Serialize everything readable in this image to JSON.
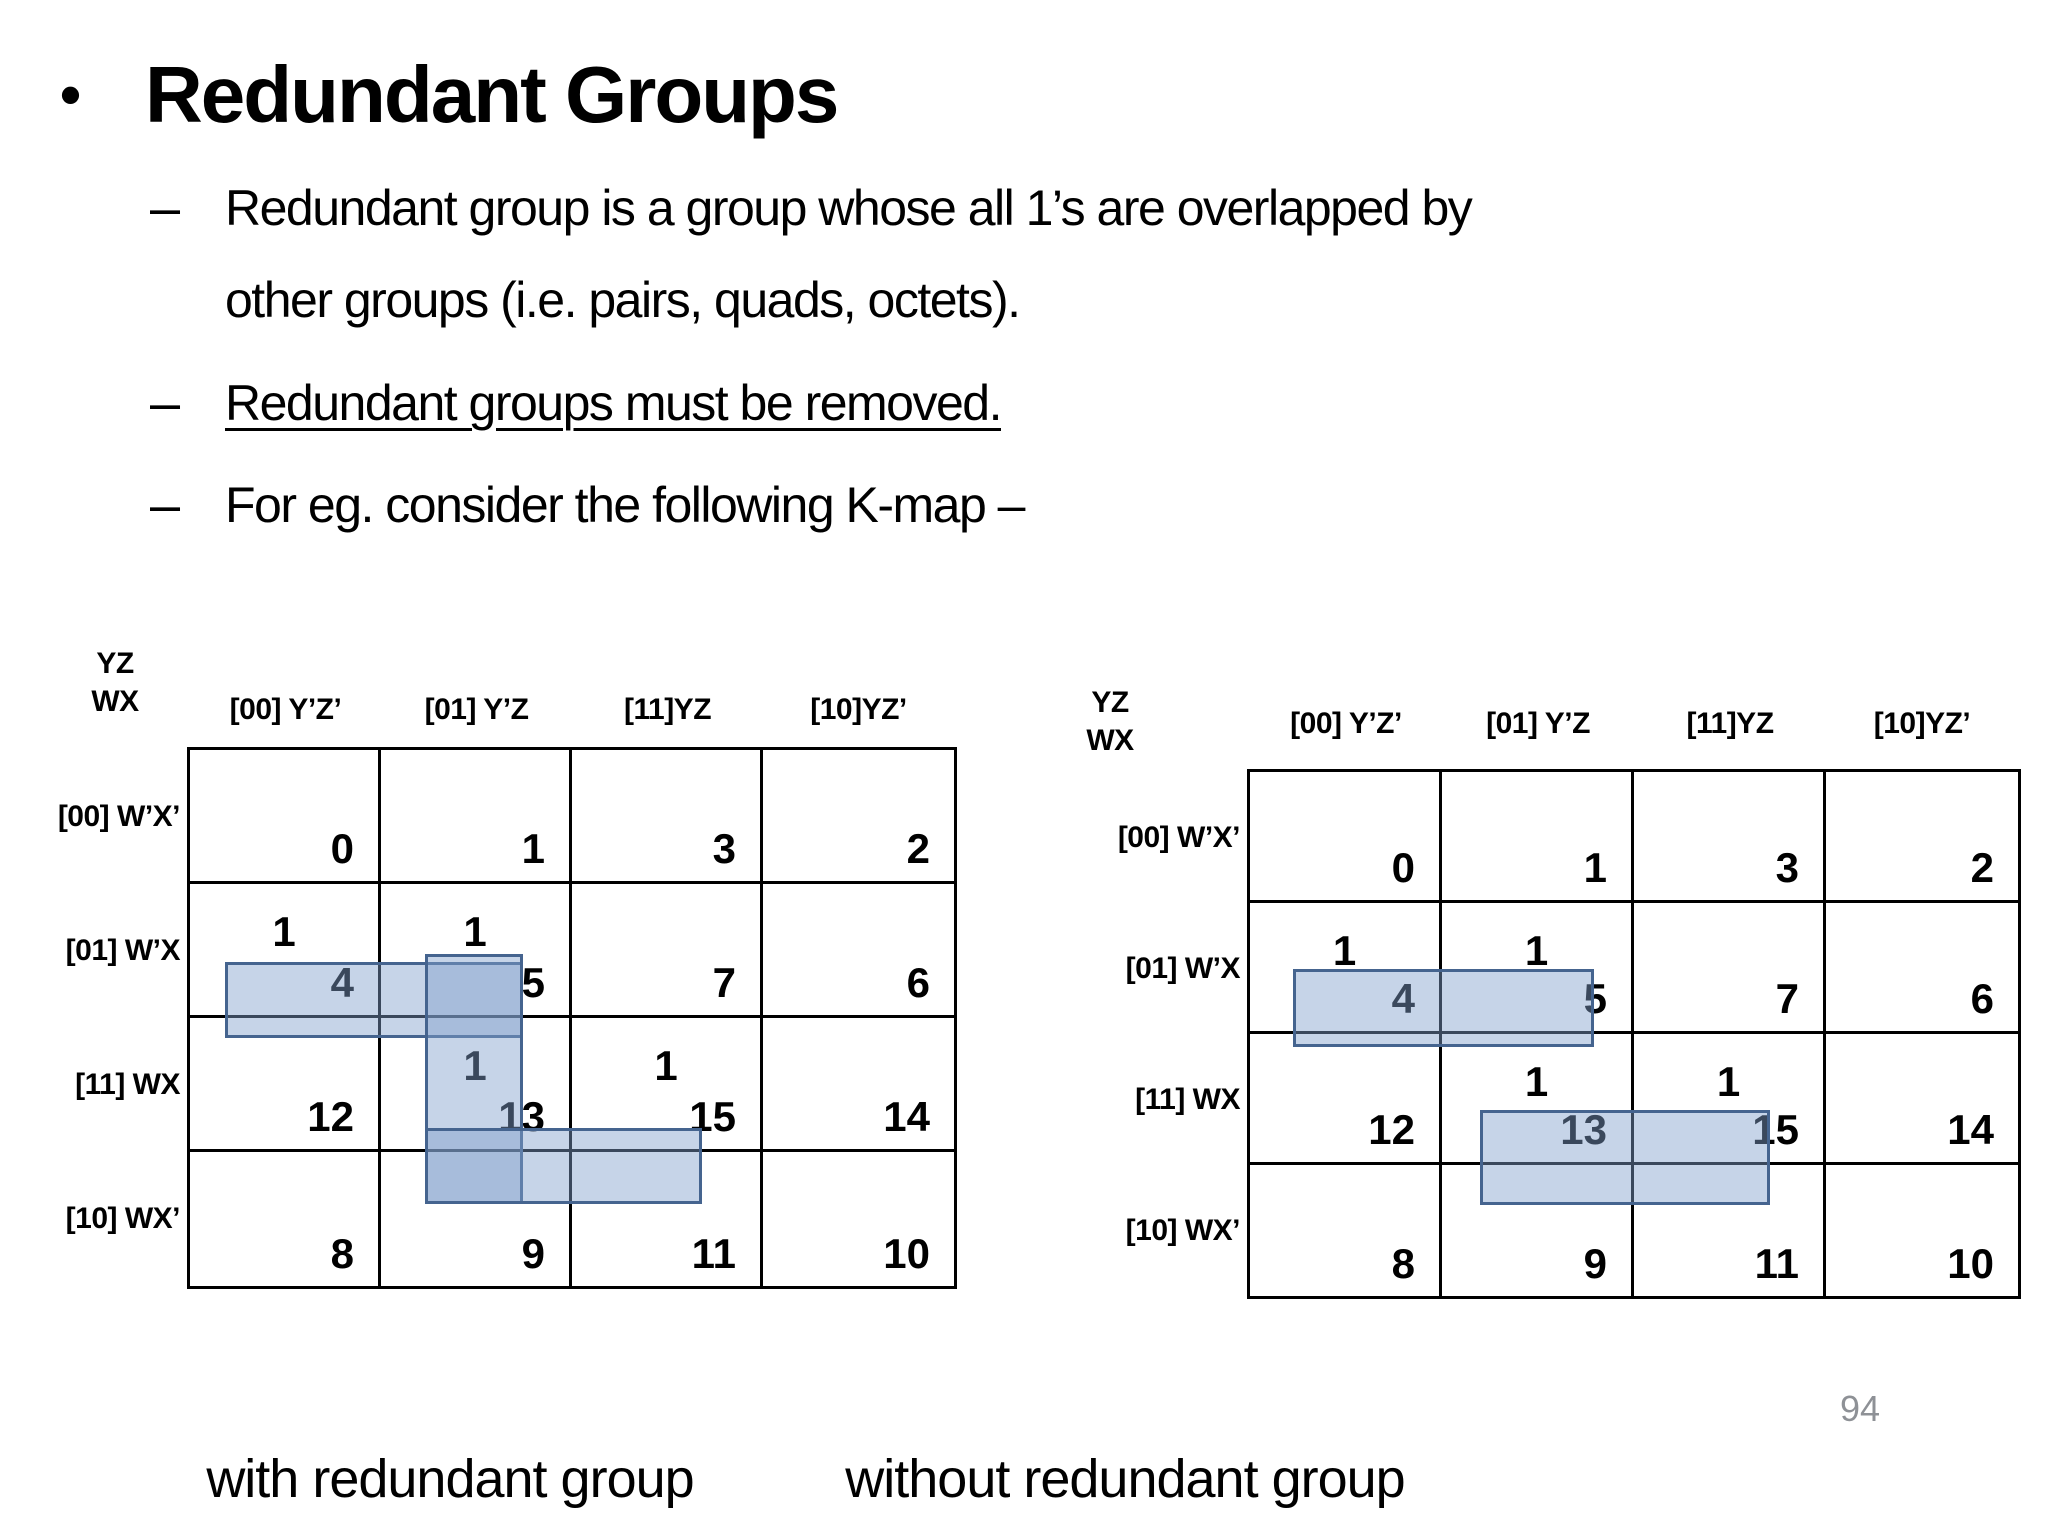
{
  "title": {
    "bullet": "•",
    "text": "Redundant Groups"
  },
  "bullets": [
    {
      "dash": "–",
      "lines": [
        "Redundant group is a group whose all 1’s are overlapped by",
        "other groups (i.e. pairs, quads, octets)."
      ]
    },
    {
      "dash": "–",
      "lines": [
        "Redundant groups must be removed."
      ],
      "underlined": true
    },
    {
      "dash": "–",
      "lines": [
        "For eg. consider the following K-map –"
      ]
    }
  ],
  "kmaps": [
    {
      "caption": "with redundant group",
      "corner": {
        "top": "YZ",
        "bottom": "WX"
      },
      "col_headers": [
        "[00] Y’Z’",
        "[01] Y’Z",
        "[11]YZ",
        "[10]YZ’"
      ],
      "row_headers": [
        "[00] W’X’",
        "[01] W’X",
        "[11] WX",
        "[10] WX’"
      ],
      "cells": [
        {
          "idx": "0",
          "one": ""
        },
        {
          "idx": "1",
          "one": ""
        },
        {
          "idx": "3",
          "one": ""
        },
        {
          "idx": "2",
          "one": ""
        },
        {
          "idx": "4",
          "one": "1"
        },
        {
          "idx": "5",
          "one": "1"
        },
        {
          "idx": "7",
          "one": ""
        },
        {
          "idx": "6",
          "one": ""
        },
        {
          "idx": "12",
          "one": ""
        },
        {
          "idx": "13",
          "one": "1"
        },
        {
          "idx": "15",
          "one": "1"
        },
        {
          "idx": "14",
          "one": ""
        },
        {
          "idx": "8",
          "one": ""
        },
        {
          "idx": "9",
          "one": ""
        },
        {
          "idx": "11",
          "one": ""
        },
        {
          "idx": "10",
          "one": ""
        }
      ],
      "groups": [
        {
          "label": "pair 4-5",
          "cells": "4,5"
        },
        {
          "label": "pair 5-13 (redundant)",
          "cells": "5,13"
        },
        {
          "label": "pair 13-15",
          "cells": "13,15"
        }
      ]
    },
    {
      "caption": "without redundant group",
      "corner": {
        "top": "YZ",
        "bottom": "WX"
      },
      "col_headers": [
        "[00] Y’Z’",
        "[01] Y’Z",
        "[11]YZ",
        "[10]YZ’"
      ],
      "row_headers": [
        "[00] W’X’",
        "[01] W’X",
        "[11] WX",
        "[10] WX’"
      ],
      "cells": [
        {
          "idx": "0",
          "one": ""
        },
        {
          "idx": "1",
          "one": ""
        },
        {
          "idx": "3",
          "one": ""
        },
        {
          "idx": "2",
          "one": ""
        },
        {
          "idx": "4",
          "one": "1"
        },
        {
          "idx": "5",
          "one": "1"
        },
        {
          "idx": "7",
          "one": ""
        },
        {
          "idx": "6",
          "one": ""
        },
        {
          "idx": "12",
          "one": ""
        },
        {
          "idx": "13",
          "one": "1"
        },
        {
          "idx": "15",
          "one": "1"
        },
        {
          "idx": "14",
          "one": ""
        },
        {
          "idx": "8",
          "one": ""
        },
        {
          "idx": "9",
          "one": ""
        },
        {
          "idx": "11",
          "one": ""
        },
        {
          "idx": "10",
          "one": ""
        }
      ],
      "groups": [
        {
          "label": "pair 4-5",
          "cells": "4,5"
        },
        {
          "label": "pair 13-15",
          "cells": "13,15"
        }
      ]
    }
  ],
  "page_number": "94",
  "colors": {
    "group_fill": "rgba(128,159,204,0.45)",
    "group_border": "#45648f",
    "page_number_gray": "#8e9196",
    "text": "#000000"
  }
}
